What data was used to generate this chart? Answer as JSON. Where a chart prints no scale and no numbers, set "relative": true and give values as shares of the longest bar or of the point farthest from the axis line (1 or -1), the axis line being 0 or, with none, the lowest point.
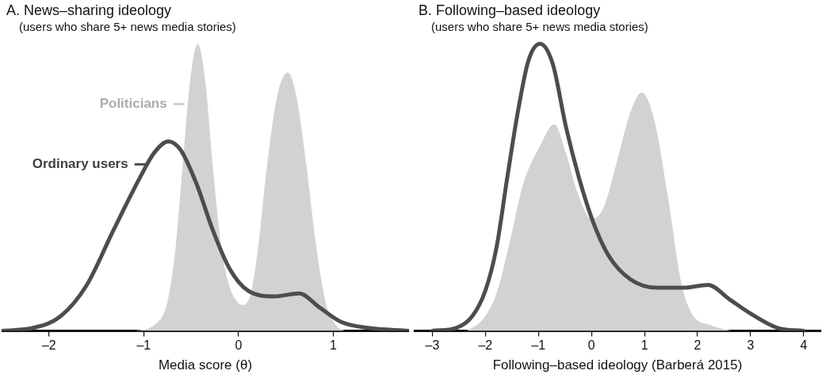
{
  "chart_data": [
    {
      "type": "area",
      "title": "A. News–sharing ideology",
      "subtitle": "(users who share 5+ news media stories)",
      "xlabel": "Media score (θ)",
      "relative": true,
      "xlim": [
        -2.5,
        1.8
      ],
      "xticks": [
        {
          "value": -2,
          "label": "–2"
        },
        {
          "value": -1,
          "label": "–1"
        },
        0,
        1
      ],
      "legend": "top left",
      "series": [
        {
          "name": "Politicians",
          "color": "#d1d2d4",
          "x": [
            -1.09,
            -0.89,
            -0.75,
            -0.67,
            -0.59,
            -0.52,
            -0.43,
            -0.35,
            -0.27,
            -0.18,
            -0.1,
            -0.01,
            0.05,
            0.13,
            0.2,
            0.3,
            0.41,
            0.52,
            0.61,
            0.72,
            0.81,
            0.92,
            1.03,
            1.12
          ],
          "values": [
            0,
            0.02,
            0.1,
            0.27,
            0.57,
            0.84,
            1,
            0.87,
            0.57,
            0.29,
            0.16,
            0.1,
            0.09,
            0.13,
            0.27,
            0.57,
            0.82,
            0.9,
            0.82,
            0.57,
            0.32,
            0.1,
            0.02,
            0
          ]
        },
        {
          "name": "Ordinary users",
          "type": "line",
          "color": "#4d4d4f",
          "x": [
            -2.49,
            -2.17,
            -1.88,
            -1.6,
            -1.32,
            -1.03,
            -0.89,
            -0.74,
            -0.61,
            -0.44,
            -0.27,
            -0.1,
            0.1,
            0.38,
            0.64,
            0.86,
            1.09,
            1.37,
            1.79
          ],
          "values": [
            0,
            0.01,
            0.05,
            0.16,
            0.35,
            0.54,
            0.62,
            0.66,
            0.63,
            0.51,
            0.35,
            0.22,
            0.14,
            0.12,
            0.13,
            0.08,
            0.03,
            0.01,
            0
          ]
        }
      ]
    },
    {
      "type": "area",
      "title": "B. Following–based ideology",
      "subtitle": "(users who share 5+ news media stories)",
      "xlabel": "Following–based ideology (Barberá 2015)",
      "relative": true,
      "xlim": [
        -3.35,
        4.33
      ],
      "xticks": [
        {
          "value": -3,
          "label": "–3"
        },
        {
          "value": -2,
          "label": "–2"
        },
        {
          "value": -1,
          "label": "–1"
        },
        0,
        1,
        2,
        3,
        4
      ],
      "series": [
        {
          "color": "#d1d2d4",
          "x": [
            -2.35,
            -2.05,
            -1.79,
            -1.54,
            -1.29,
            -0.98,
            -0.7,
            -0.48,
            -0.28,
            0,
            0.23,
            0.48,
            0.73,
            0.95,
            1.19,
            1.44,
            1.69,
            1.89,
            2.25,
            2.65
          ],
          "values": [
            0,
            0.04,
            0.13,
            0.31,
            0.51,
            0.64,
            0.72,
            0.62,
            0.49,
            0.39,
            0.43,
            0.59,
            0.76,
            0.83,
            0.73,
            0.47,
            0.17,
            0.06,
            0.02,
            0
          ]
        },
        {
          "type": "line",
          "color": "#4d4d4f",
          "x": [
            -3,
            -2.55,
            -2.25,
            -2,
            -1.79,
            -1.59,
            -1.39,
            -1.19,
            -0.97,
            -0.73,
            -0.48,
            -0.23,
            0.03,
            0.33,
            0.73,
            1.24,
            1.74,
            2.2,
            2.6,
            3,
            3.51,
            4
          ],
          "values": [
            0,
            0.01,
            0.05,
            0.14,
            0.29,
            0.53,
            0.76,
            0.94,
            1,
            0.93,
            0.71,
            0.53,
            0.38,
            0.26,
            0.18,
            0.15,
            0.15,
            0.16,
            0.11,
            0.06,
            0.01,
            0
          ]
        }
      ]
    }
  ]
}
